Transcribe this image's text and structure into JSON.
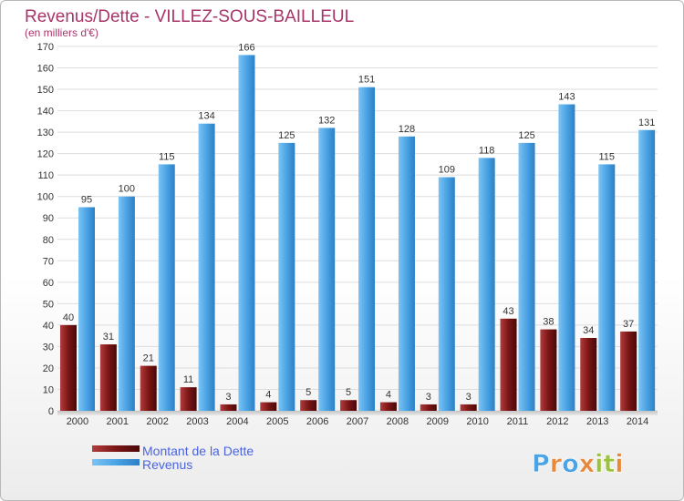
{
  "chart_data": {
    "type": "bar",
    "title": "Revenus/Dette - VILLEZ-SOUS-BAILLEUL",
    "subtitle": "(en milliers d'€)",
    "xlabel": "",
    "ylabel": "",
    "ylim": [
      0,
      170
    ],
    "yticks": [
      0,
      10,
      20,
      30,
      40,
      50,
      60,
      70,
      80,
      90,
      100,
      110,
      120,
      130,
      140,
      150,
      160,
      170
    ],
    "grid": true,
    "legend_position": "bottom-left",
    "categories": [
      "2000",
      "2001",
      "2002",
      "2003",
      "2004",
      "2005",
      "2006",
      "2007",
      "2008",
      "2009",
      "2010",
      "2011",
      "2012",
      "2013",
      "2014"
    ],
    "series": [
      {
        "name": "Montant de la Dette",
        "color": "#7a1a1a",
        "values": [
          40,
          31,
          21,
          11,
          3,
          4,
          5,
          5,
          4,
          3,
          3,
          43,
          38,
          34,
          37
        ]
      },
      {
        "name": "Revenus",
        "color": "#4ba3e3",
        "values": [
          95,
          100,
          115,
          134,
          166,
          125,
          132,
          151,
          128,
          109,
          118,
          125,
          143,
          115,
          131
        ]
      }
    ]
  },
  "brand": {
    "text": "Proxiti"
  }
}
